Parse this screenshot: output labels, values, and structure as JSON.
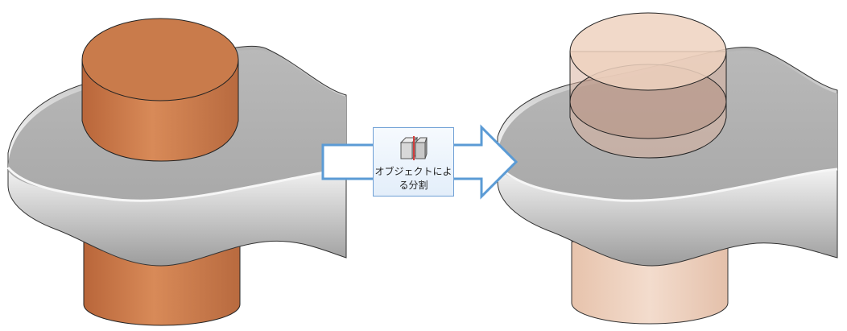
{
  "command": {
    "label_line1": "オブジェクトによ",
    "label_line2": "る分割",
    "icon": "split-by-object-icon"
  },
  "colors": {
    "arrow_stroke": "#5b9bd5",
    "solid_gray": "#b4b4b4",
    "cylinder_before": "#c97d4e",
    "cylinder_after": "#efd2c0"
  }
}
